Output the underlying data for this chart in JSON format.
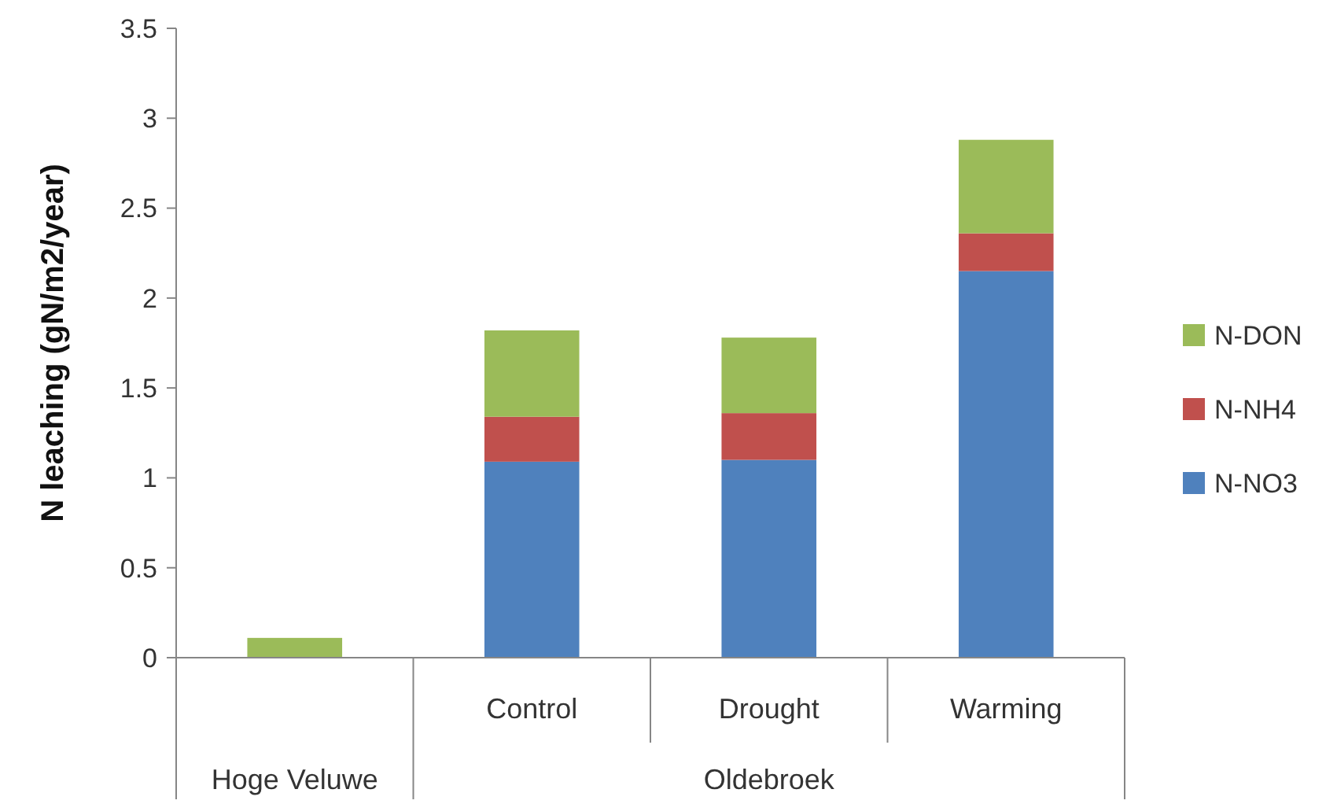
{
  "chart_data": {
    "type": "bar",
    "stacked": true,
    "ylabel": "N leaching (gN/m2/year)",
    "categories": [
      null,
      "Control",
      "Drought",
      "Warming"
    ],
    "series": [
      {
        "name": "N-NO3",
        "color": "#4f81bd",
        "values": [
          0,
          1.09,
          1.1,
          2.15
        ]
      },
      {
        "name": "N-NH4",
        "color": "#c0504d",
        "values": [
          0,
          0.25,
          0.26,
          0.21
        ]
      },
      {
        "name": "N-DON",
        "color": "#9bbb59",
        "values": [
          0.11,
          0.48,
          0.42,
          0.52
        ]
      }
    ],
    "annotations": [
      "Hoge Veluwe",
      "Oldebroek"
    ],
    "ylim": [
      0,
      3.5
    ],
    "yticks": [
      0,
      0.5,
      1,
      1.5,
      2,
      2.5,
      3,
      3.5
    ],
    "grid": false,
    "legend": "right"
  }
}
